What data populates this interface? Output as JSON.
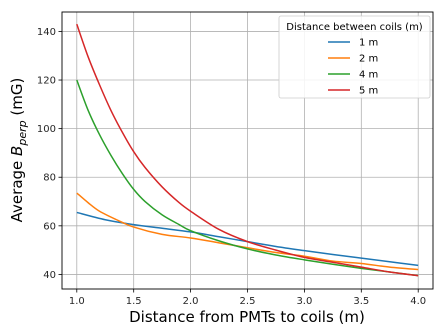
{
  "chart_data": {
    "type": "line",
    "xlabel": "Distance from PMTs to coils (m)",
    "ylabel_prefix": "Average ",
    "ylabel_var": "B",
    "ylabel_sub": "perp",
    "ylabel_unit": " (mG)",
    "xlim": [
      0.87,
      4.13
    ],
    "ylim": [
      34,
      148
    ],
    "xticks": [
      1.0,
      1.5,
      2.0,
      2.5,
      3.0,
      3.5,
      4.0
    ],
    "xtick_labels": [
      "1.0",
      "1.5",
      "2.0",
      "2.5",
      "3.0",
      "3.5",
      "4.0"
    ],
    "yticks": [
      40,
      60,
      80,
      100,
      120,
      140
    ],
    "ytick_labels": [
      "40",
      "60",
      "80",
      "100",
      "120",
      "140"
    ],
    "grid": true,
    "legend": {
      "title": "Distance between coils (m)",
      "placement": "top-right"
    },
    "series": [
      {
        "name": "1 m",
        "color": "#1f77b4",
        "x": [
          1.0,
          1.25,
          1.5,
          1.75,
          2.0,
          2.25,
          2.5,
          2.75,
          3.0,
          3.25,
          3.5,
          3.75,
          4.0
        ],
        "y": [
          65.5,
          62.5,
          60.5,
          59.0,
          57.5,
          55.5,
          53.5,
          51.5,
          49.8,
          48.2,
          46.7,
          45.2,
          43.7
        ]
      },
      {
        "name": "2 m",
        "color": "#ff7f0e",
        "x": [
          1.0,
          1.1,
          1.2,
          1.35,
          1.5,
          1.75,
          2.0,
          2.25,
          2.5,
          2.75,
          3.0,
          3.25,
          3.5,
          3.75,
          4.0
        ],
        "y": [
          73.5,
          69.5,
          66.0,
          62.5,
          59.5,
          56.5,
          55.0,
          53.0,
          51.0,
          49.0,
          47.5,
          45.5,
          44.5,
          43.0,
          42.0
        ]
      },
      {
        "name": "4 m",
        "color": "#2ca02c",
        "x": [
          1.0,
          1.1,
          1.2,
          1.3,
          1.4,
          1.5,
          1.6,
          1.75,
          1.9,
          2.0,
          2.25,
          2.5,
          2.75,
          3.0,
          3.25,
          3.5,
          3.75,
          4.0
        ],
        "y": [
          120.0,
          107.5,
          97.5,
          89.0,
          81.5,
          75.0,
          70.0,
          64.5,
          60.5,
          58.0,
          53.8,
          50.5,
          48.0,
          46.0,
          44.2,
          42.5,
          41.0,
          39.5
        ]
      },
      {
        "name": "5 m",
        "color": "#d62728",
        "x": [
          1.0,
          1.1,
          1.2,
          1.3,
          1.4,
          1.5,
          1.6,
          1.75,
          1.9,
          2.0,
          2.25,
          2.5,
          2.75,
          3.0,
          3.25,
          3.5,
          3.75,
          4.0
        ],
        "y": [
          143.0,
          129.5,
          118.0,
          107.5,
          98.5,
          90.5,
          84.0,
          76.0,
          69.5,
          66.0,
          58.5,
          53.5,
          50.0,
          47.0,
          45.0,
          43.0,
          41.0,
          39.5
        ]
      }
    ]
  }
}
